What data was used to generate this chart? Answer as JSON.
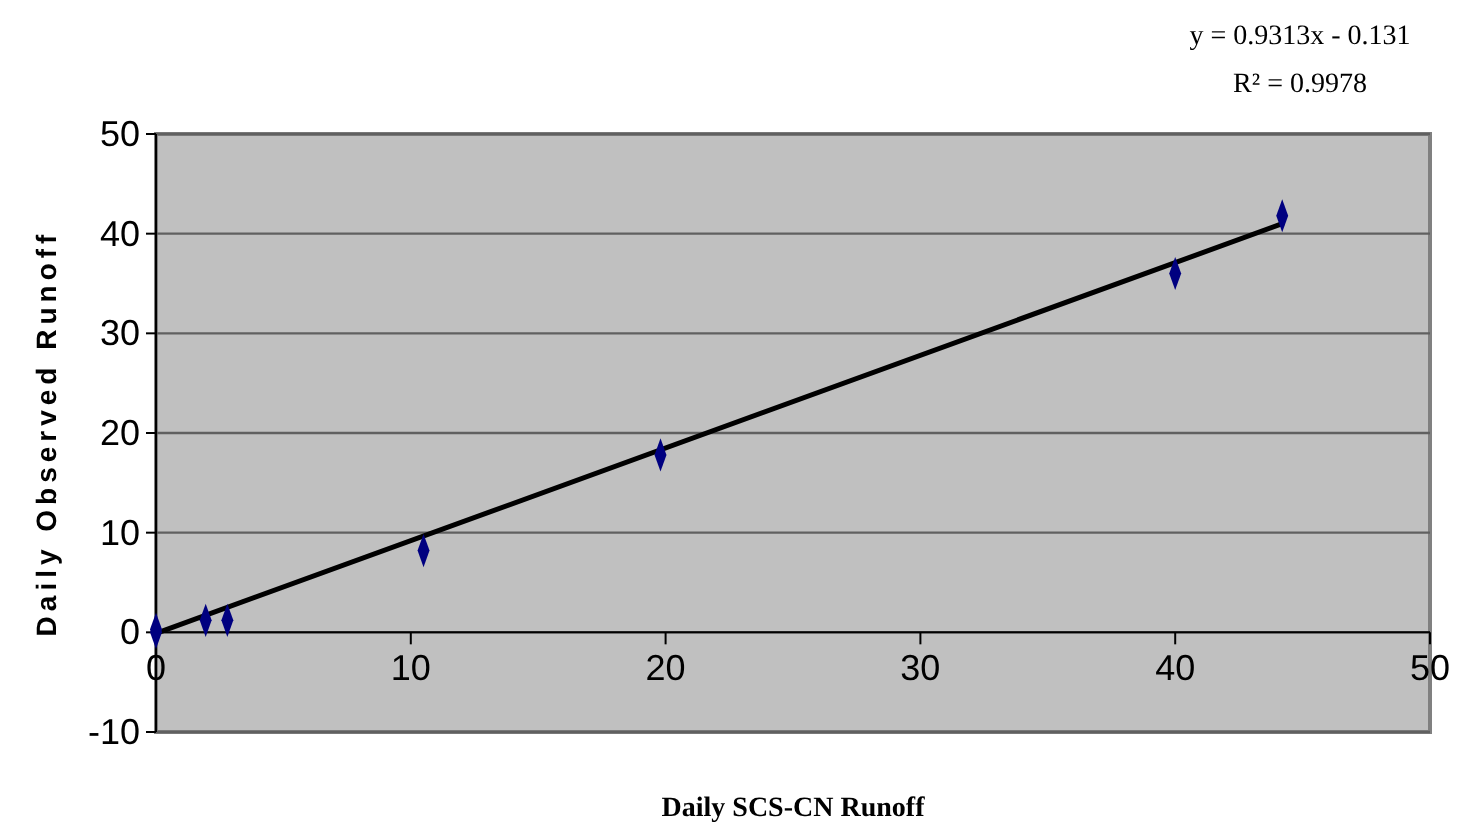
{
  "chart_data": {
    "type": "scatter",
    "xlabel": "Daily SCS-CN Runoff",
    "ylabel": "Daily Observed Runoff",
    "xlim": [
      0,
      50
    ],
    "xticks": [
      0,
      10,
      20,
      30,
      40,
      50
    ],
    "ylim": [
      -10,
      50
    ],
    "yticks": [
      -10,
      0,
      10,
      20,
      30,
      40,
      50
    ],
    "grid": "y",
    "annotations": [
      "y = 0.9313x - 0.131",
      "R² = 0.9978"
    ],
    "series": [
      {
        "marker": "diamond",
        "color": "#000080",
        "x": [
          0,
          0,
          1.95,
          2.8,
          10.5,
          19.8,
          40,
          44.2
        ],
        "values": [
          0,
          0.3,
          1.2,
          1.2,
          8.2,
          17.8,
          36,
          41.8
        ]
      },
      {
        "type": "line",
        "color": "#000000",
        "x": [
          0,
          44.2
        ],
        "values": [
          -0.1,
          41
        ],
        "line_style": "solid"
      }
    ]
  }
}
